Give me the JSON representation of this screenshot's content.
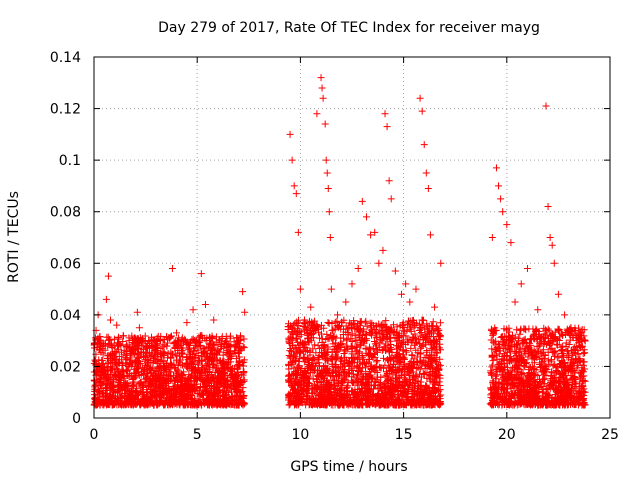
{
  "chart_data": {
    "type": "scatter",
    "title": "Day 279 of 2017, Rate Of TEC Index for receiver mayg",
    "xlabel": "GPS time / hours",
    "ylabel": "ROTI / TECUs",
    "xlim": [
      0,
      25
    ],
    "ylim": [
      0,
      0.14
    ],
    "xticks": [
      0,
      5,
      10,
      15,
      20,
      25
    ],
    "yticks": [
      0,
      0.02,
      0.04,
      0.06,
      0.08,
      0.1,
      0.12,
      0.14
    ],
    "xtick_labels": [
      "0",
      "5",
      "10",
      "15",
      "20",
      "25"
    ],
    "ytick_labels": [
      "0",
      "0.02",
      "0.04",
      "0.06",
      "0.08",
      "0.1",
      "0.12",
      "0.14"
    ],
    "grid": true,
    "marker": "plus",
    "color": "#ff0000",
    "series": [
      {
        "values": [
          [
            0.1,
            0.034
          ],
          [
            0.2,
            0.04
          ],
          [
            0.3,
            0.029
          ],
          [
            0.5,
            0.018
          ],
          [
            0.6,
            0.046
          ],
          [
            0.7,
            0.055
          ],
          [
            0.8,
            0.038
          ],
          [
            0.9,
            0.024
          ],
          [
            1.1,
            0.036
          ],
          [
            1.4,
            0.021
          ],
          [
            1.7,
            0.03
          ],
          [
            2.0,
            0.016
          ],
          [
            2.1,
            0.041
          ],
          [
            2.2,
            0.035
          ],
          [
            2.4,
            0.018
          ],
          [
            2.6,
            0.027
          ],
          [
            3.0,
            0.024
          ],
          [
            3.2,
            0.022
          ],
          [
            3.5,
            0.019
          ],
          [
            3.8,
            0.058
          ],
          [
            4.0,
            0.033
          ],
          [
            4.2,
            0.028
          ],
          [
            4.5,
            0.037
          ],
          [
            4.8,
            0.042
          ],
          [
            5.2,
            0.056
          ],
          [
            5.4,
            0.044
          ],
          [
            5.6,
            0.03
          ],
          [
            5.8,
            0.038
          ],
          [
            6.0,
            0.026
          ],
          [
            6.3,
            0.022
          ],
          [
            6.6,
            0.031
          ],
          [
            7.0,
            0.025
          ],
          [
            7.2,
            0.049
          ],
          [
            7.3,
            0.041
          ],
          [
            9.5,
            0.11
          ],
          [
            9.6,
            0.1
          ],
          [
            9.7,
            0.09
          ],
          [
            9.8,
            0.087
          ],
          [
            9.9,
            0.072
          ],
          [
            10.0,
            0.05
          ],
          [
            10.2,
            0.038
          ],
          [
            10.5,
            0.043
          ],
          [
            10.8,
            0.118
          ],
          [
            11.0,
            0.132
          ],
          [
            11.05,
            0.128
          ],
          [
            11.1,
            0.124
          ],
          [
            11.2,
            0.114
          ],
          [
            11.25,
            0.1
          ],
          [
            11.3,
            0.095
          ],
          [
            11.35,
            0.089
          ],
          [
            11.4,
            0.08
          ],
          [
            11.45,
            0.07
          ],
          [
            11.5,
            0.05
          ],
          [
            11.8,
            0.04
          ],
          [
            12.2,
            0.045
          ],
          [
            12.5,
            0.052
          ],
          [
            12.8,
            0.058
          ],
          [
            13.0,
            0.084
          ],
          [
            13.2,
            0.078
          ],
          [
            13.4,
            0.071
          ],
          [
            13.6,
            0.072
          ],
          [
            13.8,
            0.06
          ],
          [
            14.0,
            0.065
          ],
          [
            14.1,
            0.118
          ],
          [
            14.2,
            0.113
          ],
          [
            14.3,
            0.092
          ],
          [
            14.4,
            0.085
          ],
          [
            14.6,
            0.057
          ],
          [
            14.9,
            0.048
          ],
          [
            15.1,
            0.052
          ],
          [
            15.3,
            0.045
          ],
          [
            15.6,
            0.05
          ],
          [
            15.8,
            0.124
          ],
          [
            15.9,
            0.119
          ],
          [
            16.0,
            0.106
          ],
          [
            16.1,
            0.095
          ],
          [
            16.2,
            0.089
          ],
          [
            16.3,
            0.071
          ],
          [
            16.5,
            0.043
          ],
          [
            16.8,
            0.06
          ],
          [
            19.3,
            0.07
          ],
          [
            19.5,
            0.097
          ],
          [
            19.6,
            0.09
          ],
          [
            19.7,
            0.085
          ],
          [
            19.8,
            0.08
          ],
          [
            20.0,
            0.075
          ],
          [
            20.2,
            0.068
          ],
          [
            20.4,
            0.045
          ],
          [
            20.7,
            0.052
          ],
          [
            21.0,
            0.058
          ],
          [
            21.5,
            0.042
          ],
          [
            21.9,
            0.121
          ],
          [
            22.0,
            0.082
          ],
          [
            22.1,
            0.07
          ],
          [
            22.2,
            0.067
          ],
          [
            22.3,
            0.06
          ],
          [
            22.5,
            0.048
          ],
          [
            22.8,
            0.04
          ],
          [
            23.1,
            0.035
          ],
          [
            23.4,
            0.03
          ],
          [
            23.7,
            0.025
          ]
        ]
      }
    ],
    "dense_segments": [
      {
        "x": [
          0.0,
          7.3
        ],
        "y": [
          0.005,
          0.032
        ]
      },
      {
        "x": [
          9.4,
          16.8
        ],
        "y": [
          0.005,
          0.038
        ]
      },
      {
        "x": [
          19.2,
          23.8
        ],
        "y": [
          0.005,
          0.035
        ]
      }
    ]
  }
}
